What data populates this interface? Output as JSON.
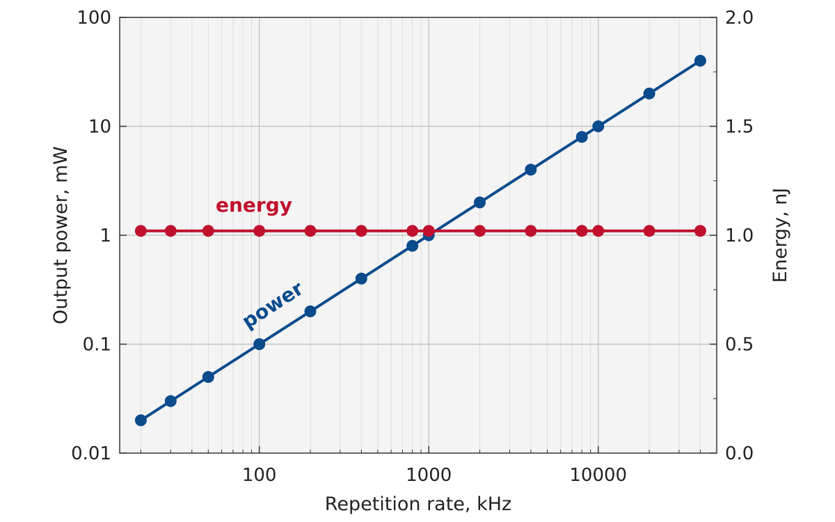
{
  "chart_data": {
    "type": "line",
    "xlabel": "Repetition rate, kHz",
    "ylabel": "Output power, mW",
    "y2label": "Energy, nJ",
    "x_scale": "log",
    "y_scale": "log",
    "y2_scale": "linear",
    "xlim": [
      15,
      50000
    ],
    "ylim": [
      0.01,
      100
    ],
    "y2lim": [
      0.0,
      2.0
    ],
    "x_ticks": [
      100,
      1000,
      10000
    ],
    "x_tick_labels": [
      "100",
      "1000",
      "10000"
    ],
    "y_ticks": [
      0.01,
      0.1,
      1,
      10,
      100
    ],
    "y_tick_labels": [
      "0.01",
      "0.1",
      "1",
      "10",
      "100"
    ],
    "y2_ticks": [
      0.0,
      0.5,
      1.0,
      1.5,
      2.0
    ],
    "y2_tick_labels": [
      "0.0",
      "0.5",
      "1.0",
      "1.5",
      "2.0"
    ],
    "grid": true,
    "background": "#f4f4f4",
    "series": [
      {
        "name": "power",
        "axis": "left",
        "color": "#0a4b8c",
        "x": [
          20,
          30,
          50,
          100,
          200,
          400,
          800,
          1000,
          2000,
          4000,
          8000,
          10000,
          20000,
          40000
        ],
        "values": [
          0.02,
          0.03,
          0.05,
          0.1,
          0.2,
          0.4,
          0.8,
          1.0,
          2.0,
          4.0,
          8.0,
          10.0,
          20.0,
          40.0
        ]
      },
      {
        "name": "energy",
        "axis": "right",
        "color": "#c0102e",
        "x": [
          20,
          30,
          50,
          100,
          200,
          400,
          800,
          1000,
          2000,
          4000,
          8000,
          10000,
          20000,
          40000
        ],
        "values": [
          1.02,
          1.02,
          1.02,
          1.02,
          1.02,
          1.02,
          1.02,
          1.02,
          1.02,
          1.02,
          1.02,
          1.02,
          1.02,
          1.02
        ]
      }
    ]
  }
}
